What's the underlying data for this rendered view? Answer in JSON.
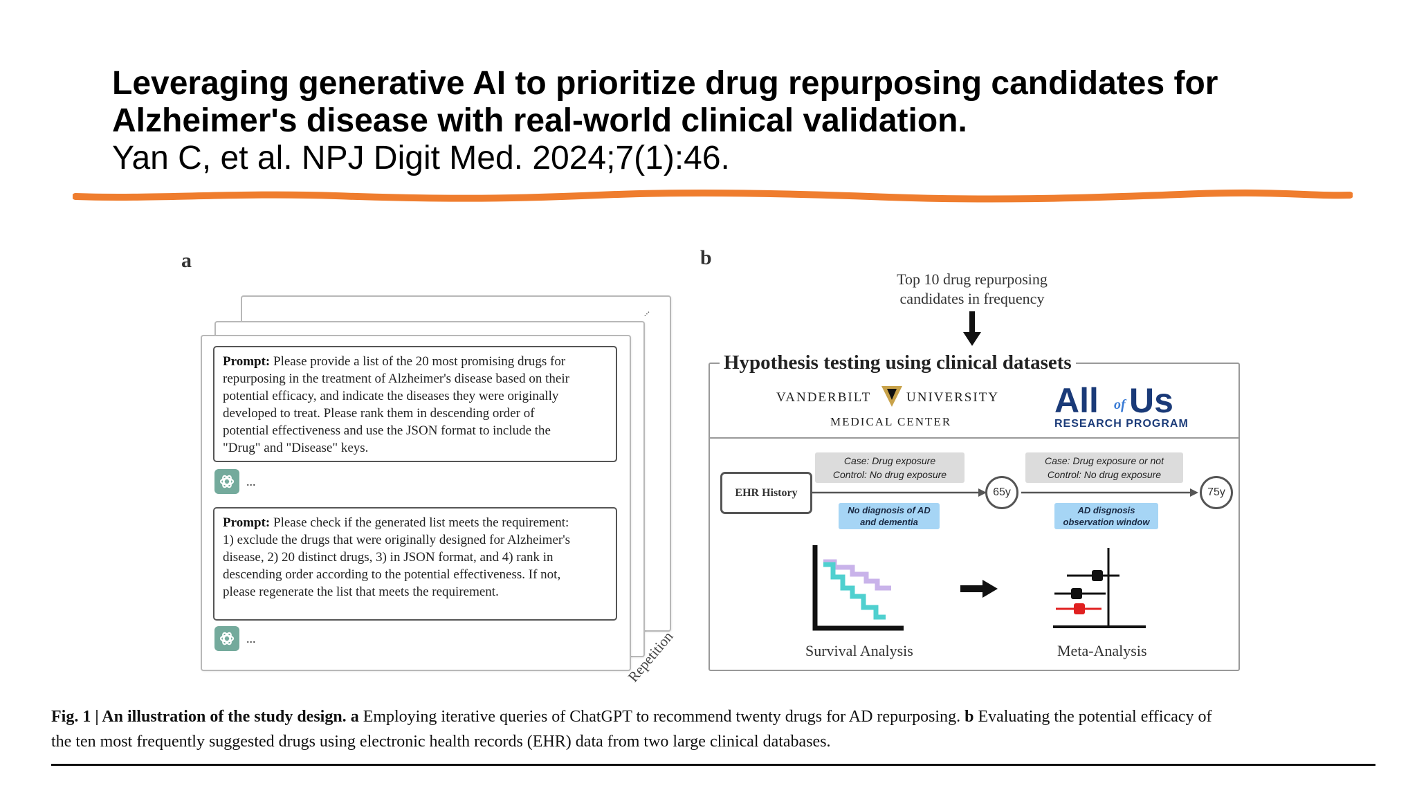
{
  "slide": {
    "title_line1": "Leveraging generative AI to prioritize drug repurposing candidates for",
    "title_line2": "Alzheimer's disease with real-world clinical validation.",
    "citation": "Yan C, et al. NPJ Digit Med. 2024;7(1):46.",
    "underline_color": "#ef7d2e"
  },
  "figure": {
    "panel_a": {
      "label": "a",
      "prompt1_lead": "Prompt:",
      "prompt1_lines": [
        " Please provide a list of the 20 most promising drugs for",
        "repurposing in the treatment of Alzheimer's disease based on their",
        "potential efficacy, and indicate the diseases they were originally",
        "developed to treat. Please rank them in descending order of",
        "potential effectiveness and use the JSON format to include the",
        "\"Drug\" and \"Disease\" keys."
      ],
      "prompt2_lead": "Prompt:",
      "prompt2_lines": [
        " Please check if the generated list meets the requirement:",
        "1) exclude the drugs that were originally designed for Alzheimer's",
        "disease, 2) 20 distinct drugs, 3) in JSON format, and 4) rank in",
        "descending order according to the potential effectiveness. If not,",
        "please regenerate the list that meets the requirement."
      ],
      "response_placeholder": "...",
      "stack_ellipsis": "...",
      "repetition_label": "Repetition",
      "chatgpt_icon": "chatgpt-logo-icon",
      "chatgpt_color": "#74aa9c"
    },
    "panel_b": {
      "label": "b",
      "top_text_line1": "Top 10 drug repurposing",
      "top_text_line2": "candidates in frequency",
      "box_title": "Hypothesis testing using clinical datasets",
      "vanderbilt_left": "VANDERBILT",
      "vanderbilt_right": "UNIVERSITY",
      "vanderbilt_sub": "MEDICAL CENTER",
      "vanderbilt_color": "#c8a24a",
      "allofus_all": "All",
      "allofus_of": "of",
      "allofus_us": "Us",
      "allofus_sub": "RESEARCH PROGRAM",
      "allofus_color": "#1a3a78",
      "ehr_label": "EHR History",
      "case1_line1": "Case: Drug exposure",
      "case1_line2": "Control: No drug exposure",
      "case2_line1": "Case: Drug exposure or not",
      "case2_line2": "Control: No drug exposure",
      "blue1_line1": "No diagnosis of AD",
      "blue1_line2": "and dementia",
      "blue2_line1": "AD disgnosis",
      "blue2_line2": "observation window",
      "age1": "65y",
      "age2": "75y",
      "survival_label": "Survival Analysis",
      "meta_label": "Meta-Analysis",
      "survival_colors": [
        "#c9b3ea",
        "#4fd0cf"
      ],
      "meta_marker_colors": [
        "#111111",
        "#111111",
        "#e02020"
      ]
    },
    "caption": {
      "fig_label": "Fig. 1 | An illustration of the study design.",
      "a_label": "a",
      "a_text": " Employing iterative queries of ChatGPT to recommend twenty drugs for AD repurposing.",
      "b_label": "b",
      "b_text_line1": " Evaluating the potential efficacy of",
      "b_text_line2": "the ten most frequently suggested drugs using electronic health records (EHR) data from two large clinical databases."
    }
  }
}
